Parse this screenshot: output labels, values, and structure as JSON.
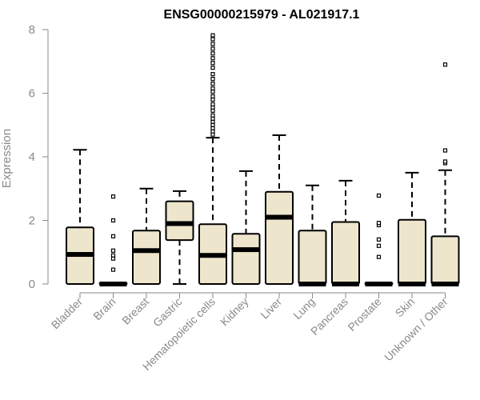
{
  "chart_data": {
    "type": "boxplot",
    "title": "ENSG00000215979 - AL021917.1",
    "xlabel": "",
    "ylabel": "Expression",
    "ylim": [
      0,
      8
    ],
    "yticks": [
      0,
      2,
      4,
      6,
      8
    ],
    "colors": {
      "box_fill": "#ede6cc",
      "box_stroke": "#000000",
      "axis": "#8a8a8a"
    },
    "categories": [
      "Bladder",
      "Brain",
      "Breast",
      "Gastric",
      "Hematopoietic cells",
      "Kidney",
      "Liver",
      "Lung",
      "Pancreas",
      "Prostate",
      "Skin",
      "Unknown / Other"
    ],
    "boxes": [
      {
        "category": "Bladder",
        "q1": 0.0,
        "median": 0.93,
        "q3": 1.78,
        "whisker_low": 0.0,
        "whisker_high": 4.22,
        "outliers": []
      },
      {
        "category": "Brain",
        "q1": 0.0,
        "median": 0.0,
        "q3": 0.03,
        "whisker_low": 0.0,
        "whisker_high": 0.05,
        "outliers": [
          0.45,
          0.8,
          0.9,
          1.05,
          1.5,
          2.0,
          2.75
        ]
      },
      {
        "category": "Breast",
        "q1": 0.0,
        "median": 1.05,
        "q3": 1.68,
        "whisker_low": 0.0,
        "whisker_high": 3.0,
        "outliers": []
      },
      {
        "category": "Gastric",
        "q1": 1.38,
        "median": 1.9,
        "q3": 2.6,
        "whisker_low": 0.0,
        "whisker_high": 2.92,
        "outliers": []
      },
      {
        "category": "Hematopoietic cells",
        "q1": 0.0,
        "median": 0.9,
        "q3": 1.88,
        "whisker_low": 0.0,
        "whisker_high": 4.6,
        "outliers": [
          4.7,
          4.8,
          4.9,
          5.0,
          5.1,
          5.2,
          5.3,
          5.45,
          5.55,
          5.65,
          5.8,
          5.9,
          6.05,
          6.15,
          6.3,
          6.45,
          6.6,
          6.8,
          6.95,
          7.1,
          7.25,
          7.4,
          7.55,
          7.7,
          7.82
        ]
      },
      {
        "category": "Kidney",
        "q1": 0.0,
        "median": 1.08,
        "q3": 1.58,
        "whisker_low": 0.0,
        "whisker_high": 3.55,
        "outliers": []
      },
      {
        "category": "Liver",
        "q1": 0.0,
        "median": 2.1,
        "q3": 2.9,
        "whisker_low": 0.0,
        "whisker_high": 4.68,
        "outliers": []
      },
      {
        "category": "Lung",
        "q1": 0.0,
        "median": 0.0,
        "q3": 1.68,
        "whisker_low": 0.0,
        "whisker_high": 3.1,
        "outliers": []
      },
      {
        "category": "Pancreas",
        "q1": 0.0,
        "median": 0.0,
        "q3": 1.95,
        "whisker_low": 0.0,
        "whisker_high": 3.25,
        "outliers": []
      },
      {
        "category": "Prostate",
        "q1": 0.0,
        "median": 0.0,
        "q3": 0.03,
        "whisker_low": 0.0,
        "whisker_high": 0.05,
        "outliers": [
          0.85,
          1.2,
          1.4,
          1.85,
          1.92,
          2.78
        ]
      },
      {
        "category": "Skin",
        "q1": 0.0,
        "median": 0.0,
        "q3": 2.02,
        "whisker_low": 0.0,
        "whisker_high": 3.5,
        "outliers": []
      },
      {
        "category": "Unknown / Other",
        "q1": 0.0,
        "median": 0.0,
        "q3": 1.5,
        "whisker_low": 0.0,
        "whisker_high": 3.58,
        "outliers": [
          3.8,
          3.85,
          4.2,
          6.9
        ]
      }
    ]
  }
}
